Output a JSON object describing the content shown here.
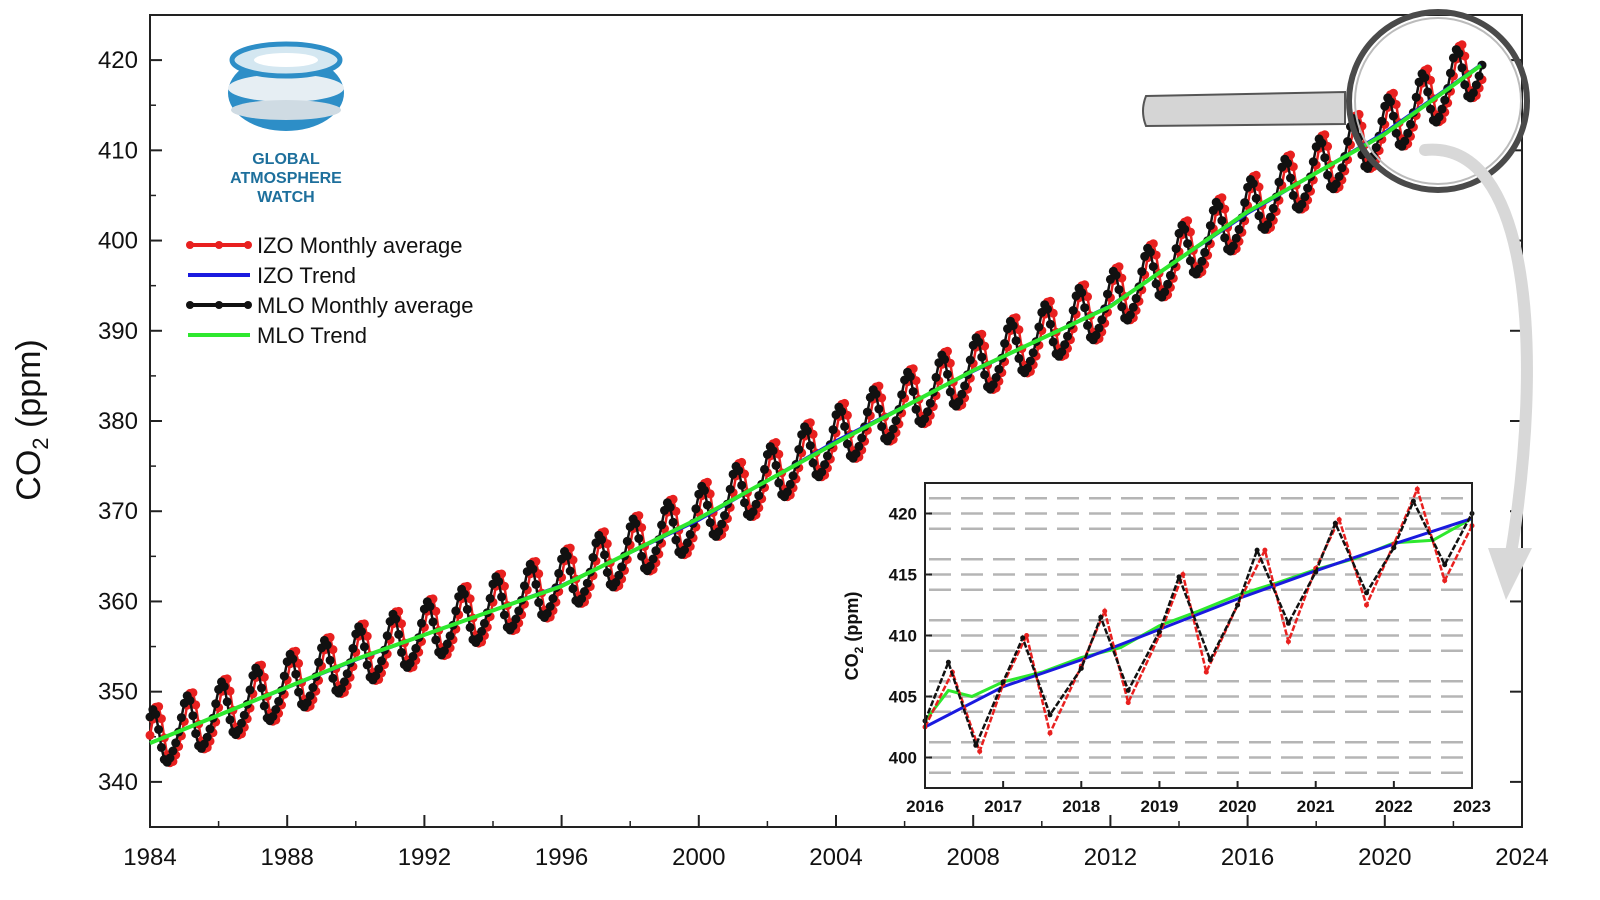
{
  "chart_data": [
    {
      "type": "line",
      "ylabel": "CO2 (ppm)",
      "ylabel_main": "CO",
      "ylabel_sub": "2",
      "ylabel_unit": " (ppm)",
      "xlim": [
        1984,
        2024
      ],
      "ylim": [
        335,
        425
      ],
      "x_ticks": [
        1984,
        1988,
        1992,
        1996,
        2000,
        2004,
        2008,
        2012,
        2016,
        2020,
        2024
      ],
      "y_ticks": [
        340,
        350,
        360,
        370,
        380,
        390,
        400,
        410,
        420
      ],
      "legend_position": "upper-left",
      "logo": {
        "lines": [
          "GLOBAL",
          "ATMOSPHERE",
          "WATCH"
        ]
      },
      "series": [
        {
          "name": "IZO Monthly average",
          "color": "#e8201f",
          "style": "line-markers",
          "trend_start": 344.3,
          "trend_points": [
            [
              1984,
              344.3
            ],
            [
              1990,
              353.5
            ],
            [
              1996,
              361.8
            ],
            [
              2000,
              369.0
            ],
            [
              2004,
              377.8
            ],
            [
              2008,
              385.5
            ],
            [
              2012,
              392.8
            ],
            [
              2016,
              403.0
            ],
            [
              2020,
              412.0
            ],
            [
              2022.8,
              419.5
            ]
          ],
          "amplitude": 3.4,
          "phase_shift": 0.12
        },
        {
          "name": "IZO Trend",
          "color": "#1a1adf",
          "style": "line",
          "points": [
            [
              1984,
              344.3
            ],
            [
              1990,
              353.5
            ],
            [
              1996,
              361.8
            ],
            [
              2000,
              369.0
            ],
            [
              2004,
              377.8
            ],
            [
              2008,
              385.5
            ],
            [
              2012,
              392.8
            ],
            [
              2016,
              403.0
            ],
            [
              2020,
              412.0
            ],
            [
              2022.8,
              419.5
            ]
          ]
        },
        {
          "name": "MLO Monthly average",
          "color": "#111111",
          "style": "line-markers",
          "trend_points": [
            [
              1984,
              344.3
            ],
            [
              1990,
              353.5
            ],
            [
              1996,
              361.8
            ],
            [
              2000,
              369.0
            ],
            [
              2004,
              377.8
            ],
            [
              2008,
              385.5
            ],
            [
              2012,
              392.8
            ],
            [
              2016,
              403.0
            ],
            [
              2020,
              412.0
            ],
            [
              2022.8,
              419.5
            ]
          ],
          "amplitude": 3.1,
          "phase_shift": 0.0
        },
        {
          "name": "MLO Trend",
          "color": "#2ee82e",
          "style": "line",
          "points": [
            [
              1984,
              344.3
            ],
            [
              1990,
              353.6
            ],
            [
              1996,
              361.7
            ],
            [
              2000,
              369.2
            ],
            [
              2004,
              377.6
            ],
            [
              2008,
              385.6
            ],
            [
              2012,
              392.7
            ],
            [
              2016,
              403.2
            ],
            [
              2020,
              411.8
            ],
            [
              2022.8,
              419.4
            ]
          ]
        }
      ]
    },
    {
      "type": "line",
      "ylabel": "CO2 (ppm)",
      "ylabel_main": "CO",
      "ylabel_sub": "2",
      "ylabel_unit": " (ppm)",
      "x_tick_labels": [
        "2016",
        "2017",
        "2018",
        "2019",
        "2020",
        "2021",
        "2022",
        "2023"
      ],
      "y_ticks": [
        400,
        405,
        410,
        415,
        420
      ],
      "ylim": [
        397.5,
        422.5
      ],
      "grid": "dashed-horizontal",
      "series": [
        {
          "name": "IZO Monthly average",
          "color": "#e8201f",
          "points": [
            [
              0,
              402.5
            ],
            [
              0.35,
              407.0
            ],
            [
              0.7,
              400.5
            ],
            [
              1.0,
              406.0
            ],
            [
              1.3,
              410.0
            ],
            [
              1.6,
              402.0
            ],
            [
              2.0,
              407.5
            ],
            [
              2.3,
              412.0
            ],
            [
              2.6,
              404.5
            ],
            [
              3.0,
              410.0
            ],
            [
              3.3,
              415.0
            ],
            [
              3.6,
              407.0
            ],
            [
              4.0,
              412.5
            ],
            [
              4.35,
              417.0
            ],
            [
              4.65,
              409.5
            ],
            [
              5.0,
              415.5
            ],
            [
              5.3,
              419.5
            ],
            [
              5.65,
              412.5
            ],
            [
              6.0,
              417.5
            ],
            [
              6.3,
              422.0
            ],
            [
              6.65,
              414.5
            ],
            [
              7.0,
              419.0
            ]
          ]
        },
        {
          "name": "IZO Trend",
          "color": "#1a1adf",
          "points": [
            [
              0,
              402.5
            ],
            [
              1,
              405.8
            ],
            [
              2,
              408.0
            ],
            [
              3,
              410.5
            ],
            [
              4,
              413.0
            ],
            [
              5,
              415.3
            ],
            [
              6,
              417.5
            ],
            [
              7,
              419.6
            ]
          ]
        },
        {
          "name": "MLO Monthly average",
          "color": "#111111",
          "points": [
            [
              0,
              403.0
            ],
            [
              0.3,
              407.8
            ],
            [
              0.65,
              401.0
            ],
            [
              1.0,
              406.2
            ],
            [
              1.25,
              409.8
            ],
            [
              1.6,
              403.5
            ],
            [
              2.0,
              407.3
            ],
            [
              2.25,
              411.5
            ],
            [
              2.6,
              405.5
            ],
            [
              3.0,
              410.3
            ],
            [
              3.25,
              414.8
            ],
            [
              3.65,
              408.0
            ],
            [
              4.0,
              412.5
            ],
            [
              4.25,
              417.0
            ],
            [
              4.65,
              411.0
            ],
            [
              5.0,
              415.2
            ],
            [
              5.25,
              419.2
            ],
            [
              5.65,
              413.5
            ],
            [
              6.0,
              417.2
            ],
            [
              6.25,
              421.0
            ],
            [
              6.65,
              415.8
            ],
            [
              7.0,
              420.0
            ]
          ]
        },
        {
          "name": "MLO Trend",
          "color": "#2ee82e",
          "points": [
            [
              0,
              403.0
            ],
            [
              0.3,
              405.5
            ],
            [
              0.6,
              405.0
            ],
            [
              1.0,
              406.2
            ],
            [
              1.5,
              407.0
            ],
            [
              2.0,
              408.2
            ],
            [
              2.5,
              409.0
            ],
            [
              3.0,
              410.8
            ],
            [
              3.5,
              412.0
            ],
            [
              4.0,
              413.3
            ],
            [
              4.5,
              414.3
            ],
            [
              5.0,
              415.4
            ],
            [
              5.5,
              416.3
            ],
            [
              6.0,
              417.6
            ],
            [
              6.5,
              417.8
            ],
            [
              7.0,
              419.6
            ]
          ]
        }
      ]
    }
  ]
}
